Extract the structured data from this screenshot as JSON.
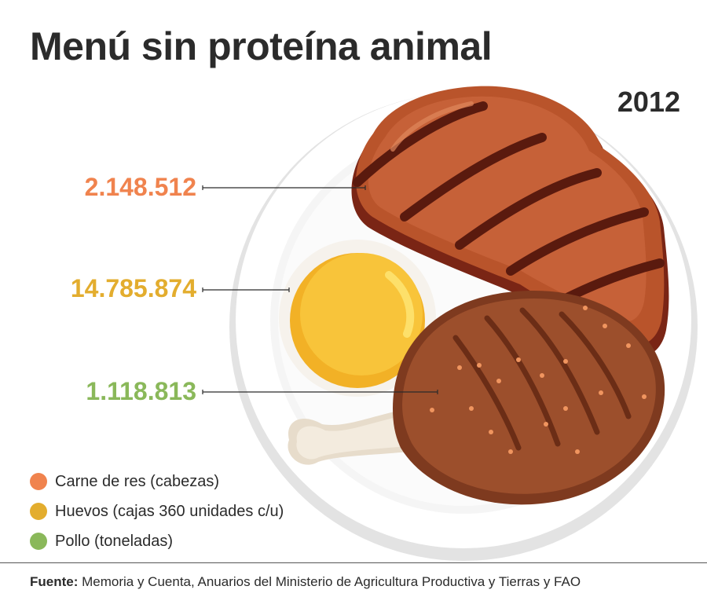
{
  "title": "Menú sin proteína animal",
  "year": "2012",
  "colors": {
    "beef": "#f0834e",
    "eggs": "#e3ad2e",
    "chicken": "#8ab85a"
  },
  "values": {
    "beef": "2.148.512",
    "eggs": "14.785.874",
    "chicken": "1.118.813"
  },
  "legend": [
    {
      "label": "Carne de res (cabezas)",
      "color": "#f0834e"
    },
    {
      "label": "Huevos (cajas 360 unidades c/u)",
      "color": "#e3ad2e"
    },
    {
      "label": "Pollo (toneladas)",
      "color": "#8ab85a"
    }
  ],
  "footer": {
    "label": "Fuente:",
    "text": " Memoria y Cuenta, Anuarios del Ministerio de Agricultura Productiva y Tierras y FAO"
  }
}
